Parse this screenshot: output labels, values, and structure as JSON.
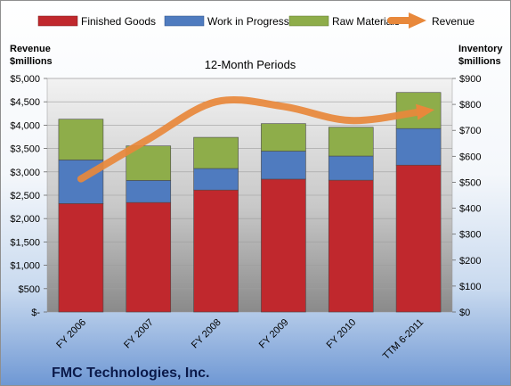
{
  "company": "FMC Technologies, Inc.",
  "chart_data": {
    "type": "bar",
    "stacked": true,
    "title": "12-Month Periods",
    "categories": [
      "FY 2006",
      "FY 2007",
      "FY 2008",
      "FY 2009",
      "FY 2010",
      "TTM 6-2011"
    ],
    "left_axis": {
      "label_line1": "Revenue",
      "label_line2": "$millions",
      "ylim": [
        0,
        5000
      ],
      "ticks": [
        0,
        500,
        1000,
        1500,
        2000,
        2500,
        3000,
        3500,
        4000,
        4500,
        5000
      ],
      "tick_labels": [
        "$-",
        "$500",
        "$1,000",
        "$1,500",
        "$2,000",
        "$2,500",
        "$3,000",
        "$3,500",
        "$4,000",
        "$4,500",
        "$5,000"
      ]
    },
    "right_axis": {
      "label_line1": "Inventory",
      "label_line2": "$millions",
      "ylim": [
        0,
        900
      ],
      "ticks": [
        0,
        100,
        200,
        300,
        400,
        500,
        600,
        700,
        800,
        900
      ],
      "tick_labels": [
        "$0",
        "$100",
        "$200",
        "$300",
        "$400",
        "$500",
        "$600",
        "$700",
        "$800",
        "$900"
      ]
    },
    "series": [
      {
        "name": "Finished Goods",
        "axis": "right",
        "color": "#c0282d",
        "values": [
          418,
          422,
          470,
          512,
          508,
          566
        ]
      },
      {
        "name": "Work in Progress",
        "axis": "right",
        "color": "#4f7bbf",
        "values": [
          168,
          85,
          83,
          108,
          93,
          141
        ]
      },
      {
        "name": "Raw Materials",
        "axis": "right",
        "color": "#8ead4a",
        "values": [
          157,
          133,
          120,
          106,
          111,
          139
        ]
      }
    ],
    "line_series": {
      "name": "Revenue",
      "axis": "left",
      "color": "#e8883b",
      "values": [
        2850,
        3700,
        4500,
        4400,
        4100,
        4300
      ]
    },
    "grid": true,
    "legend": "top"
  }
}
